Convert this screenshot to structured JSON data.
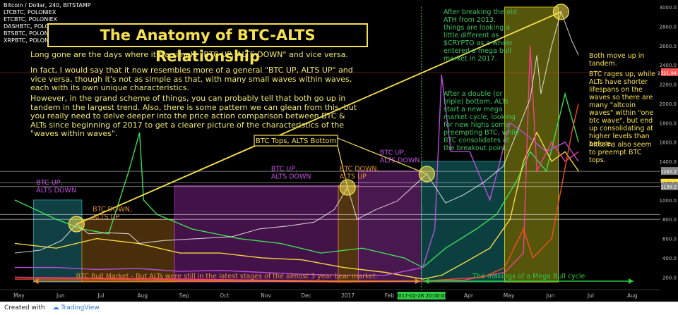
{
  "chart_data": {
    "type": "line",
    "title": "The Anatomy of BTC-ALTS Relationship",
    "header": "Bitcoin / Dollar, 240, BITSTAMP",
    "series_labels": [
      "LTCBTC, POLONIEX",
      "ETCBTC, POLONIEX",
      "DASHBTC, POLONIEX",
      "BTSBTC, POLONIEX",
      "XRPBTC, POLONIEX"
    ],
    "x_ticks": [
      "May",
      "Jun",
      "Jul",
      "Aug",
      "Sep",
      "Oct",
      "Nov",
      "Dec",
      "2017",
      "Feb",
      "Mar",
      "Apr",
      "May",
      "Jun",
      "Jul",
      "Aug"
    ],
    "y_ticks": [
      200,
      400,
      600,
      800,
      1000,
      1200,
      1400,
      1600,
      1800,
      2000,
      2200,
      2400,
      2600,
      2800,
      3000
    ],
    "ylim": [
      100,
      3000
    ],
    "price_badges": [
      {
        "value": "2321.94",
        "color": "#ff5555"
      },
      {
        "value": "1 175.7",
        "color": "#ffe040"
      },
      {
        "value": "1297.2",
        "color": "#888"
      },
      {
        "value": "1139.2",
        "color": "#888"
      }
    ],
    "date_badge": "2017-02-28 20:00:00",
    "btc_price": [
      [
        "2016-05-01",
        450
      ],
      [
        "2016-05-20",
        480
      ],
      [
        "2016-06-05",
        580
      ],
      [
        "2016-06-16",
        750
      ],
      [
        "2016-06-25",
        650
      ],
      [
        "2016-07-10",
        660
      ],
      [
        "2016-07-25",
        650
      ],
      [
        "2016-08-02",
        550
      ],
      [
        "2016-08-20",
        580
      ],
      [
        "2016-09-15",
        600
      ],
      [
        "2016-10-10",
        620
      ],
      [
        "2016-10-30",
        700
      ],
      [
        "2016-11-20",
        730
      ],
      [
        "2016-12-10",
        770
      ],
      [
        "2016-12-25",
        900
      ],
      [
        "2017-01-04",
        1130
      ],
      [
        "2017-01-11",
        800
      ],
      [
        "2017-01-25",
        900
      ],
      [
        "2017-02-10",
        990
      ],
      [
        "2017-02-25",
        1180
      ],
      [
        "2017-03-04",
        1270
      ],
      [
        "2017-03-18",
        970
      ],
      [
        "2017-03-31",
        1050
      ],
      [
        "2017-04-15",
        1180
      ],
      [
        "2017-04-30",
        1350
      ],
      [
        "2017-05-10",
        1700
      ],
      [
        "2017-05-20",
        2050
      ],
      [
        "2017-05-25",
        2500
      ],
      [
        "2017-05-28",
        2100
      ],
      [
        "2017-06-05",
        2600
      ],
      [
        "2017-06-12",
        2950
      ],
      [
        "2017-06-20",
        2650
      ],
      [
        "2017-06-25",
        2500
      ]
    ],
    "alt_series": [
      {
        "color": "#3ee65a",
        "points": [
          [
            "2016-05-01",
            1000
          ],
          [
            "2016-06-01",
            800
          ],
          [
            "2016-06-20",
            700
          ],
          [
            "2016-07-10",
            650
          ],
          [
            "2016-07-25",
            1300
          ],
          [
            "2016-08-02",
            1700
          ],
          [
            "2016-08-05",
            1000
          ],
          [
            "2016-08-15",
            850
          ],
          [
            "2016-09-10",
            700
          ],
          [
            "2016-10-15",
            600
          ],
          [
            "2016-11-15",
            550
          ],
          [
            "2016-12-15",
            450
          ],
          [
            "2017-01-15",
            500
          ],
          [
            "2017-02-15",
            400
          ],
          [
            "2017-03-01",
            300
          ],
          [
            "2017-03-18",
            500
          ],
          [
            "2017-04-10",
            700
          ],
          [
            "2017-04-25",
            850
          ],
          [
            "2017-05-10",
            1200
          ],
          [
            "2017-05-20",
            1500
          ],
          [
            "2017-06-01",
            1300
          ],
          [
            "2017-06-15",
            2100
          ],
          [
            "2017-06-25",
            1600
          ]
        ]
      },
      {
        "color": "#ffe040",
        "points": [
          [
            "2016-05-01",
            550
          ],
          [
            "2016-06-01",
            500
          ],
          [
            "2016-07-01",
            600
          ],
          [
            "2016-08-01",
            550
          ],
          [
            "2016-09-01",
            450
          ],
          [
            "2016-10-01",
            450
          ],
          [
            "2016-11-01",
            400
          ],
          [
            "2016-12-01",
            380
          ],
          [
            "2017-01-01",
            300
          ],
          [
            "2017-02-01",
            250
          ],
          [
            "2017-03-01",
            180
          ],
          [
            "2017-03-15",
            220
          ],
          [
            "2017-04-01",
            350
          ],
          [
            "2017-04-20",
            500
          ],
          [
            "2017-05-05",
            800
          ],
          [
            "2017-05-15",
            1400
          ],
          [
            "2017-05-25",
            1700
          ],
          [
            "2017-06-05",
            1400
          ],
          [
            "2017-06-15",
            1500
          ],
          [
            "2017-06-25",
            1300
          ]
        ]
      },
      {
        "color": "#c050e0",
        "points": [
          [
            "2016-05-01",
            300
          ],
          [
            "2016-06-01",
            300
          ],
          [
            "2016-07-01",
            280
          ],
          [
            "2016-08-01",
            290
          ],
          [
            "2016-09-01",
            260
          ],
          [
            "2016-10-01",
            270
          ],
          [
            "2016-11-01",
            250
          ],
          [
            "2016-12-01",
            230
          ],
          [
            "2017-01-01",
            220
          ],
          [
            "2017-02-01",
            220
          ],
          [
            "2017-03-01",
            300
          ],
          [
            "2017-03-10",
            700
          ],
          [
            "2017-03-15",
            2300
          ],
          [
            "2017-03-22",
            1500
          ],
          [
            "2017-04-05",
            1500
          ],
          [
            "2017-04-20",
            1000
          ],
          [
            "2017-05-05",
            1800
          ],
          [
            "2017-05-15",
            1700
          ],
          [
            "2017-06-01",
            1500
          ],
          [
            "2017-06-15",
            1600
          ],
          [
            "2017-06-25",
            1400
          ]
        ]
      },
      {
        "color": "#ff4090",
        "points": [
          [
            "2016-05-01",
            200
          ],
          [
            "2016-07-01",
            190
          ],
          [
            "2016-09-01",
            180
          ],
          [
            "2016-11-01",
            170
          ],
          [
            "2017-01-01",
            160
          ],
          [
            "2017-03-01",
            160
          ],
          [
            "2017-04-01",
            170
          ],
          [
            "2017-05-01",
            250
          ],
          [
            "2017-05-15",
            450
          ],
          [
            "2017-05-20",
            2600
          ],
          [
            "2017-05-25",
            1300
          ],
          [
            "2017-06-05",
            1600
          ],
          [
            "2017-06-15",
            1400
          ],
          [
            "2017-06-25",
            1500
          ]
        ]
      },
      {
        "color": "#ff5020",
        "points": [
          [
            "2016-05-01",
            180
          ],
          [
            "2016-07-01",
            180
          ],
          [
            "2016-09-01",
            170
          ],
          [
            "2016-11-01",
            160
          ],
          [
            "2017-01-01",
            150
          ],
          [
            "2017-03-01",
            160
          ],
          [
            "2017-04-15",
            200
          ],
          [
            "2017-05-01",
            300
          ],
          [
            "2017-05-15",
            700
          ],
          [
            "2017-05-22",
            400
          ],
          [
            "2017-06-05",
            600
          ],
          [
            "2017-06-20",
            1700
          ],
          [
            "2017-06-25",
            2000
          ]
        ]
      }
    ],
    "zones": [
      {
        "label": "BTC UP,\nALTS DOWN",
        "color": "#2aa7b0",
        "from": "2016-05-15",
        "to": "2016-06-20",
        "top": 1000
      },
      {
        "label": "BTC DOWN,\nALTS UP",
        "color": "#c07a20",
        "from": "2016-06-20",
        "to": "2016-08-28",
        "top": 800
      },
      {
        "label": "BTC UP,\nALTS DOWN",
        "color": "#b030c0",
        "from": "2016-08-28",
        "to": "2016-12-28",
        "top": 1150
      },
      {
        "label": "BTC DOWN,\nALTS UP",
        "color": "#d4882a",
        "from": "2016-12-28",
        "to": "2017-01-12",
        "top": 1150
      },
      {
        "label": "BTC UP,\nALTS DOWN",
        "color": "#c040d0",
        "from": "2017-01-12",
        "to": "2017-02-28",
        "top": 1300
      },
      {
        "label": "",
        "color": "#20a8a8",
        "from": "2017-02-28",
        "to": "2017-05-01",
        "top": 1400
      },
      {
        "label": "",
        "color": "#e0e020",
        "from": "2017-05-01",
        "to": "2017-06-10",
        "top": 3000
      }
    ],
    "annotations": {
      "btc_tops_box": "BTC Tops, ALTS Bottom",
      "bull_market": "BTC Bull Market - But ALTs were still in the latest stages of the almost 3 year bear market.",
      "mega_bull": "The makings of a Mega Bull cycle",
      "ath_note": "After breaking the old\nATH from 2013,\nthings are looking a\nlittle different as\n$CRYPTO as a whole\nentered a mega bull\nmarket in 2017.",
      "double_bottom": "After a double (or\ntriple) bottom, ALTs\nstart a new mega\nmarket cycle, looking\nfor new highs some\npreempting BTC, while\nBTC consolidates at\nthe breakout point.",
      "tandem": "Both move up in\ntandem.",
      "rages": "BTC rages up, while\nALTs have shorter\nlifespans on the\nwaves so there are\nmany \"altcoin\nwaves\" within \"one\nbtc wave\", but end\nup consolidating at\nhigher levels than\nbefore.",
      "preempt": "Altcoins also seem\nto preempt BTC\ntops."
    },
    "paragraphs": [
      "Long gone are the days where it's a simple \"BTC UP, ALTS DOWN\" and vice versa.",
      "In fact, I would say that it now resembles more of a general \"BTC UP, ALTS UP\" and vice versa, though it's not as simple as that, with many small waves within waves, each with its own unique characteristics.",
      "However, in the grand scheme of things, you can probably tell that both go up in tandem in the largest trend. Also, there is some pattern we can glean from this, but you really need to delve deeper into the price action comparison between BTC & ALTs since beginning of 2017 to get a clearer picture of the characteristics of the \"waves within waves\"."
    ]
  },
  "footer": {
    "created_with": "Created with",
    "brand": "TradingView"
  }
}
